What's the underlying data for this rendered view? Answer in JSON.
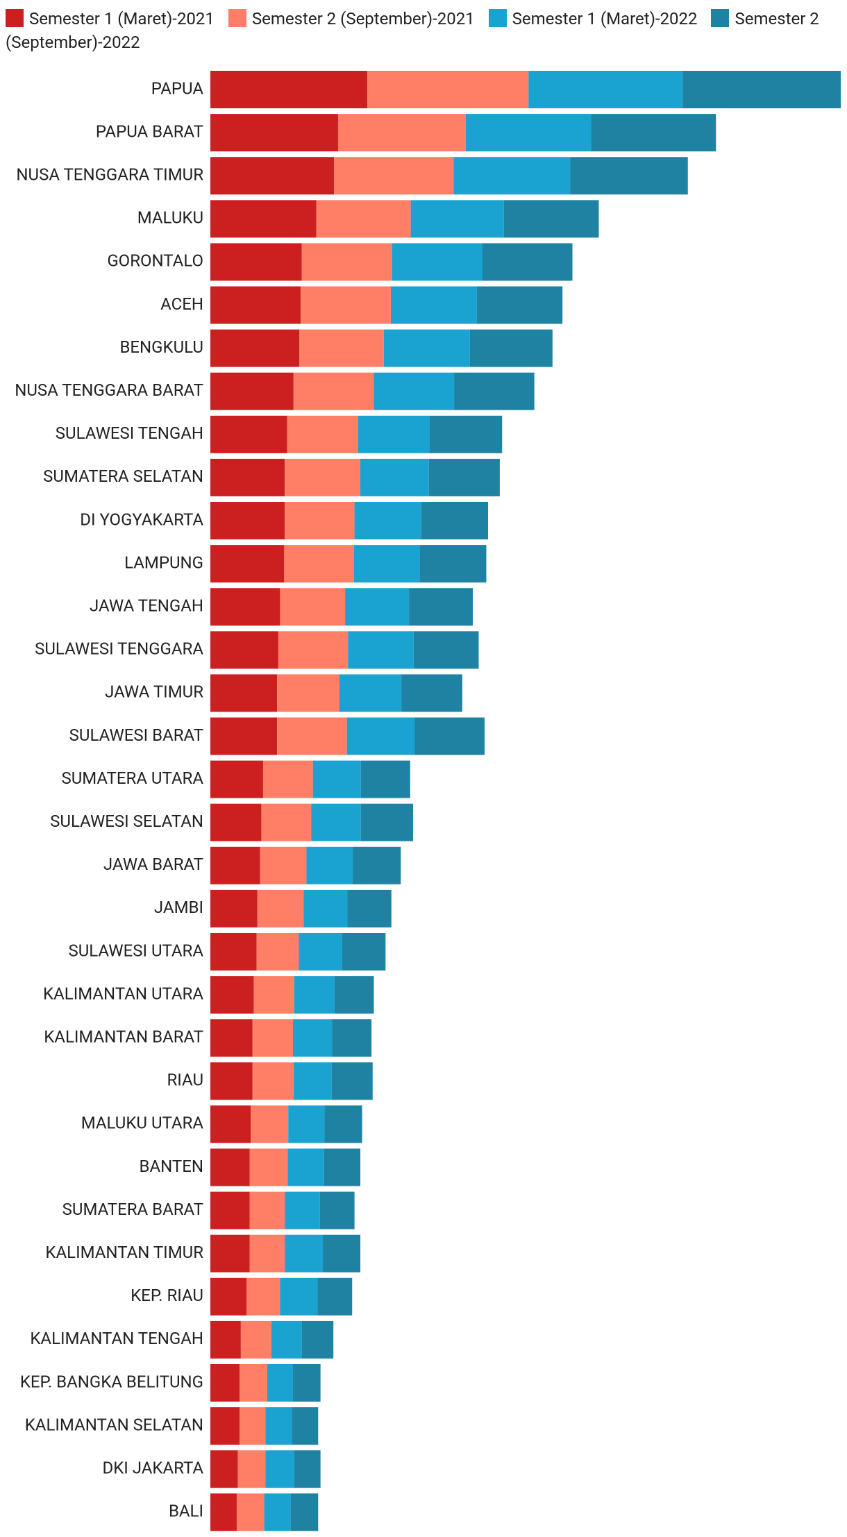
{
  "chart_data": {
    "type": "bar",
    "orientation": "horizontal",
    "stacked": true,
    "categories": [
      "PAPUA",
      "PAPUA BARAT",
      "NUSA TENGGARA TIMUR",
      "MALUKU",
      "GORONTALO",
      "ACEH",
      "BENGKULU",
      "NUSA TENGGARA BARAT",
      "SULAWESI TENGAH",
      "SUMATERA SELATAN",
      "DI YOGYAKARTA",
      "LAMPUNG",
      "JAWA TENGAH",
      "SULAWESI TENGGARA",
      "JAWA TIMUR",
      "SULAWESI BARAT",
      "SUMATERA UTARA",
      "SULAWESI SELATAN",
      "JAWA BARAT",
      "JAMBI",
      "SULAWESI UTARA",
      "KALIMANTAN UTARA",
      "KALIMANTAN BARAT",
      "RIAU",
      "MALUKU UTARA",
      "BANTEN",
      "SUMATERA BARAT",
      "KALIMANTAN TIMUR",
      "KEP. RIAU",
      "KALIMANTAN TENGAH",
      "KEP. BANGKA BELITUNG",
      "KALIMANTAN SELATAN",
      "DKI JAKARTA",
      "BALI"
    ],
    "series": [
      {
        "name": "Semester 1 (Maret)-2021",
        "color": "#cc2020",
        "values": [
          26.8,
          21.8,
          21.1,
          18.1,
          15.6,
          15.4,
          15.2,
          14.2,
          13.1,
          12.7,
          12.7,
          12.6,
          11.9,
          11.6,
          11.4,
          11.4,
          9.0,
          8.7,
          8.5,
          8.0,
          7.9,
          7.4,
          7.2,
          7.2,
          6.9,
          6.7,
          6.7,
          6.7,
          6.2,
          5.2,
          5.0,
          5.0,
          4.7,
          4.5
        ]
      },
      {
        "name": "Semester 2 (September)-2021",
        "color": "#ff7f66",
        "values": [
          27.5,
          21.8,
          20.4,
          16.1,
          15.4,
          15.4,
          14.4,
          13.7,
          12.1,
          12.9,
          11.9,
          11.9,
          11.1,
          11.9,
          10.6,
          11.9,
          8.5,
          8.5,
          7.9,
          7.9,
          7.2,
          6.9,
          6.9,
          7.0,
          6.4,
          6.5,
          6.0,
          6.0,
          5.7,
          5.2,
          4.7,
          4.4,
          4.7,
          4.7
        ]
      },
      {
        "name": "Semester 1 (Maret)-2022",
        "color": "#1aa3d0",
        "values": [
          26.3,
          21.4,
          19.9,
          15.9,
          15.4,
          14.7,
          14.7,
          13.7,
          12.2,
          11.7,
          11.4,
          11.2,
          10.9,
          11.2,
          10.6,
          11.6,
          8.2,
          8.5,
          7.9,
          7.5,
          7.4,
          6.9,
          6.7,
          6.5,
          6.2,
          6.2,
          6.0,
          6.5,
          6.4,
          5.2,
          4.4,
          4.5,
          4.9,
          4.5
        ]
      },
      {
        "name": "Semester 2 (September)-2022",
        "color": "#1f82a3",
        "values": [
          27.0,
          21.3,
          20.1,
          16.2,
          15.4,
          14.6,
          14.1,
          13.7,
          12.4,
          12.1,
          11.4,
          11.4,
          10.9,
          11.1,
          10.4,
          11.9,
          8.4,
          8.9,
          8.2,
          7.5,
          7.4,
          6.7,
          6.7,
          7.0,
          6.4,
          6.2,
          5.9,
          6.4,
          5.9,
          5.4,
          4.7,
          4.5,
          4.5,
          4.7
        ]
      }
    ]
  }
}
